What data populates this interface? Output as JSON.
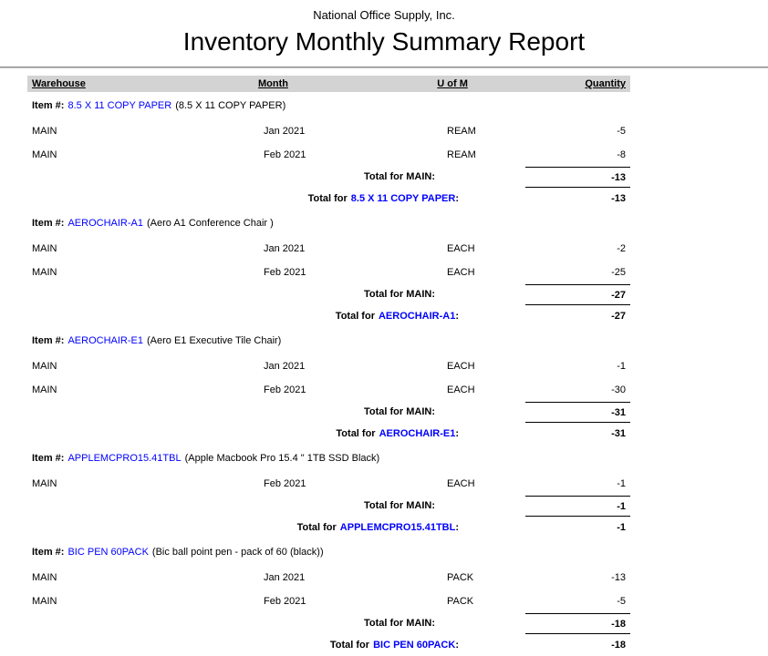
{
  "report": {
    "company": "National Office Supply, Inc.",
    "title": "Inventory Monthly Summary Report"
  },
  "table": {
    "headers": {
      "warehouse": "Warehouse",
      "month": "Month",
      "uom": "U of M",
      "quantity": "Quantity"
    }
  },
  "labels": {
    "item_prefix": "Item #:",
    "total_for": "Total for",
    "colon": ":"
  },
  "colors": {
    "link_blue": "#0000ff",
    "header_band": "#d3d3d3"
  },
  "sections": [
    {
      "item_code": "8.5 X 11 COPY PAPER",
      "item_description": "(8.5 X 11 COPY PAPER)",
      "rows": [
        {
          "warehouse": "MAIN",
          "month": "Jan 2021",
          "uom": "REAM",
          "quantity": "-5"
        },
        {
          "warehouse": "MAIN",
          "month": "Feb 2021",
          "uom": "REAM",
          "quantity": "-8"
        }
      ],
      "warehouse_total_label": "Total for MAIN:",
      "warehouse_total": "-13",
      "item_total": "-13"
    },
    {
      "item_code": "AEROCHAIR-A1",
      "item_description": "(Aero A1 Conference Chair )",
      "rows": [
        {
          "warehouse": "MAIN",
          "month": "Jan 2021",
          "uom": "EACH",
          "quantity": "-2"
        },
        {
          "warehouse": "MAIN",
          "month": "Feb 2021",
          "uom": "EACH",
          "quantity": "-25"
        }
      ],
      "warehouse_total_label": "Total for MAIN:",
      "warehouse_total": "-27",
      "item_total": "-27"
    },
    {
      "item_code": "AEROCHAIR-E1",
      "item_description": "(Aero E1 Executive Tile Chair)",
      "rows": [
        {
          "warehouse": "MAIN",
          "month": "Jan 2021",
          "uom": "EACH",
          "quantity": "-1"
        },
        {
          "warehouse": "MAIN",
          "month": "Feb 2021",
          "uom": "EACH",
          "quantity": "-30"
        }
      ],
      "warehouse_total_label": "Total for MAIN:",
      "warehouse_total": "-31",
      "item_total": "-31"
    },
    {
      "item_code": "APPLEMCPRO15.41TBL",
      "item_description": "(Apple Macbook Pro 15.4 \" 1TB SSD Black)",
      "rows": [
        {
          "warehouse": "MAIN",
          "month": "Feb 2021",
          "uom": "EACH",
          "quantity": "-1"
        }
      ],
      "warehouse_total_label": "Total for MAIN:",
      "warehouse_total": "-1",
      "item_total": "-1"
    },
    {
      "item_code": "BIC PEN 60PACK",
      "item_description": "(Bic ball point pen - pack of 60 (black))",
      "rows": [
        {
          "warehouse": "MAIN",
          "month": "Jan 2021",
          "uom": "PACK",
          "quantity": "-13"
        },
        {
          "warehouse": "MAIN",
          "month": "Feb 2021",
          "uom": "PACK",
          "quantity": "-5"
        }
      ],
      "warehouse_total_label": "Total for MAIN:",
      "warehouse_total": "-18",
      "item_total": "-18"
    }
  ]
}
